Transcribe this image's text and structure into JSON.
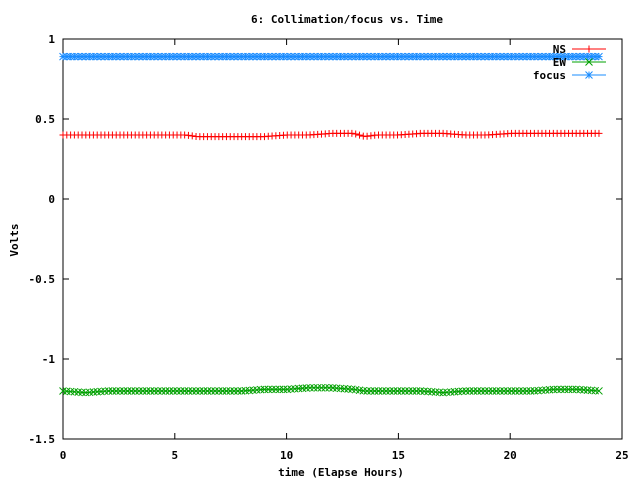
{
  "chart_data": {
    "type": "line",
    "title": "6: Collimation/focus vs. Time",
    "xlabel": "time (Elapse Hours)",
    "ylabel": "Volts",
    "xlim": [
      0,
      25
    ],
    "ylim": [
      -1.5,
      1
    ],
    "xticks": [
      0,
      5,
      10,
      15,
      20,
      25
    ],
    "xtick_labels": [
      "0",
      "5",
      "10",
      "15",
      "20",
      "25"
    ],
    "yticks": [
      1,
      0.5,
      0,
      -0.5,
      -1,
      -1.5
    ],
    "ytick_labels": [
      "1",
      "0.5",
      "0",
      "-0.5",
      "-1",
      "-1.5"
    ],
    "grid": false,
    "legend_position": "top-right",
    "x": [
      0,
      1,
      2,
      3,
      4,
      5,
      5.5,
      6,
      7,
      8,
      9,
      10,
      11,
      12,
      13,
      13.5,
      14,
      15,
      16,
      17,
      18,
      19,
      20,
      21,
      22,
      23,
      24
    ],
    "series": [
      {
        "name": "NS",
        "color": "#ff0000",
        "marker": "plus",
        "values": [
          0.4,
          0.4,
          0.4,
          0.4,
          0.4,
          0.4,
          0.4,
          0.39,
          0.39,
          0.39,
          0.39,
          0.4,
          0.4,
          0.41,
          0.41,
          0.39,
          0.4,
          0.4,
          0.41,
          0.41,
          0.4,
          0.4,
          0.41,
          0.41,
          0.41,
          0.41,
          0.41
        ]
      },
      {
        "name": "EW",
        "color": "#00a000",
        "marker": "cross",
        "values": [
          -1.2,
          -1.21,
          -1.2,
          -1.2,
          -1.2,
          -1.2,
          -1.2,
          -1.2,
          -1.2,
          -1.2,
          -1.19,
          -1.19,
          -1.18,
          -1.18,
          -1.19,
          -1.2,
          -1.2,
          -1.2,
          -1.2,
          -1.21,
          -1.2,
          -1.2,
          -1.2,
          -1.2,
          -1.19,
          -1.19,
          -1.2
        ]
      },
      {
        "name": "focus",
        "color": "#1a8cff",
        "marker": "star",
        "values": [
          0.89,
          0.89,
          0.89,
          0.89,
          0.89,
          0.89,
          0.89,
          0.89,
          0.89,
          0.89,
          0.89,
          0.89,
          0.89,
          0.89,
          0.89,
          0.89,
          0.89,
          0.89,
          0.89,
          0.89,
          0.89,
          0.89,
          0.89,
          0.89,
          0.89,
          0.89,
          0.89
        ]
      }
    ]
  }
}
